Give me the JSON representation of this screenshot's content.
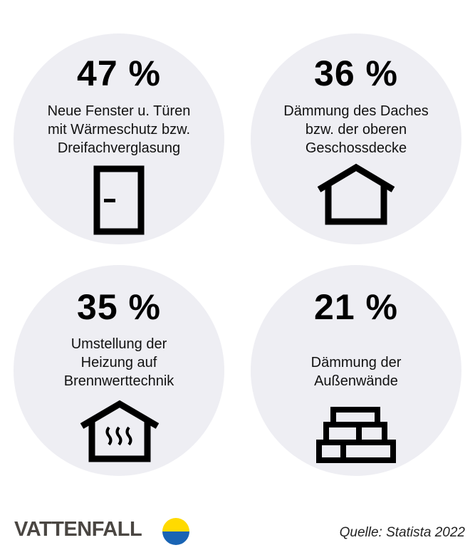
{
  "stats": [
    {
      "value": "47 %",
      "lines": [
        "Neue Fenster u. Türen",
        "mit Wärmeschutz bzw.",
        "Dreifachverglasung"
      ],
      "icon": "door-icon"
    },
    {
      "value": "36 %",
      "lines": [
        "Dämmung des Daches",
        "bzw. der oberen",
        "Geschossdecke"
      ],
      "icon": "house-icon"
    },
    {
      "value": "35 %",
      "lines": [
        "Umstellung der",
        "Heizung auf",
        "Brennwerttechnik"
      ],
      "icon": "heated-house-icon"
    },
    {
      "value": "21 %",
      "lines": [
        "Dämmung der",
        "Außenwände"
      ],
      "icon": "brick-wall-icon"
    }
  ],
  "footer": {
    "brand": "VATTENFALL",
    "source": "Quelle: Statista 2022"
  },
  "colors": {
    "circle": "#eeeef3",
    "logo_yellow": "#ffda00",
    "logo_blue": "#1964b4",
    "logo_text": "#4a4642"
  }
}
